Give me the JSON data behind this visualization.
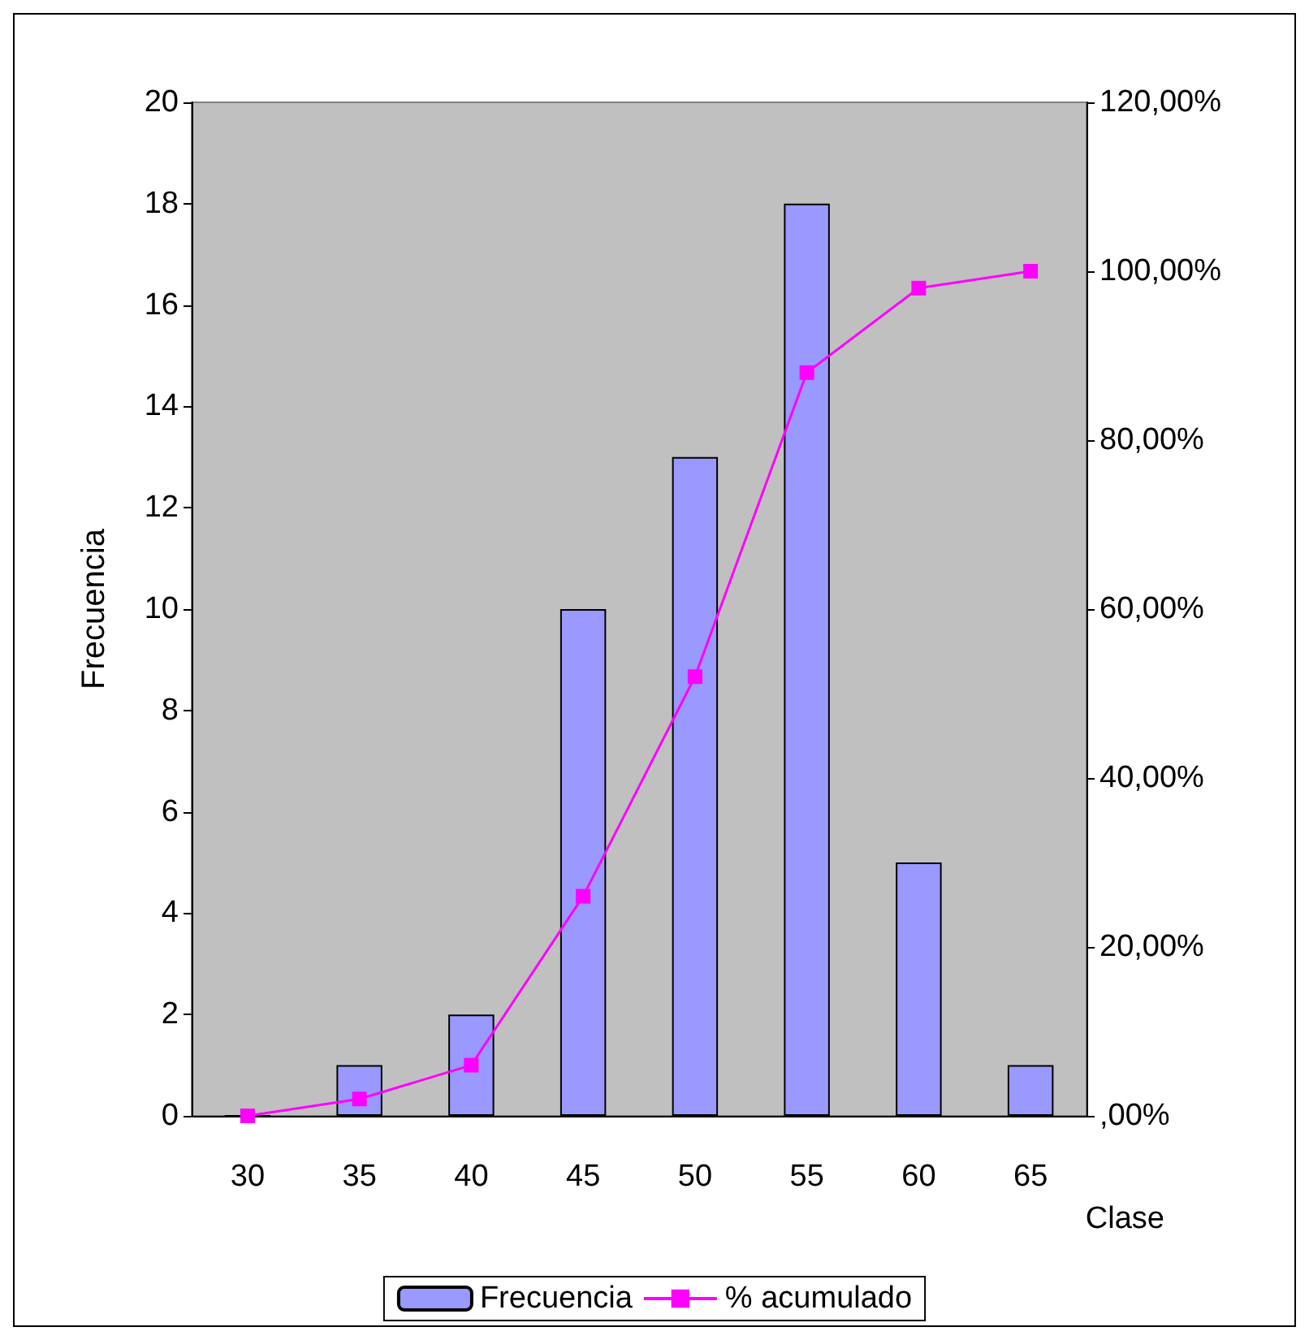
{
  "chart_data": {
    "type": "bar",
    "xlabel": "Clase",
    "ylabel": "Frecuencia",
    "categories": [
      "30",
      "35",
      "40",
      "45",
      "50",
      "55",
      "60",
      "65"
    ],
    "series": [
      {
        "name": "Frecuencia",
        "color": "#9999ff",
        "values": [
          0,
          1,
          2,
          10,
          13,
          18,
          5,
          1
        ]
      },
      {
        "name": "% acumulado",
        "type": "line",
        "axis": "y2",
        "color": "#ff00ff",
        "marker": "square",
        "values": [
          0,
          2,
          6,
          26,
          52,
          88,
          98,
          100
        ]
      }
    ],
    "ylim": [
      0,
      20
    ],
    "yticks": [
      0,
      2,
      4,
      6,
      8,
      10,
      12,
      14,
      16,
      18,
      20
    ],
    "y2lim": [
      0,
      120
    ],
    "y2ticks": [
      {
        "value": 0,
        "label": ",00%"
      },
      {
        "value": 20,
        "label": "20,00%"
      },
      {
        "value": 40,
        "label": "40,00%"
      },
      {
        "value": 60,
        "label": "60,00%"
      },
      {
        "value": 80,
        "label": "80,00%"
      },
      {
        "value": 100,
        "label": "100,00%"
      },
      {
        "value": 120,
        "label": "120,00%"
      }
    ],
    "grid": false,
    "legend": "bottom"
  }
}
